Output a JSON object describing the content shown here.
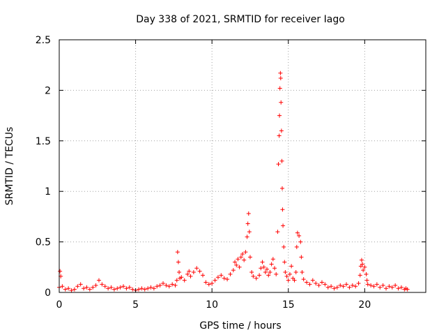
{
  "chart_data": {
    "type": "scatter",
    "title": "Day 338 of 2021, SRMTID for receiver Iago",
    "xlabel": "GPS time / hours",
    "ylabel": "SRMTID / TECUs",
    "xlim": [
      0,
      24
    ],
    "ylim": [
      0,
      2.5
    ],
    "xticks": [
      0,
      5,
      10,
      15,
      20
    ],
    "yticks": [
      0,
      0.5,
      1,
      1.5,
      2,
      2.5
    ],
    "xtick_labels": [
      "0",
      "5",
      "10",
      "15",
      "20"
    ],
    "ytick_labels": [
      "0",
      "0.5",
      "1",
      "1.5",
      "2",
      "2.5"
    ],
    "grid": true,
    "series": [
      {
        "name": "SRMTID",
        "color": "#ff0000",
        "marker": "plus",
        "points": [
          [
            0.0,
            0.05
          ],
          [
            0.05,
            0.21
          ],
          [
            0.1,
            0.16
          ],
          [
            0.2,
            0.06
          ],
          [
            0.4,
            0.03
          ],
          [
            0.6,
            0.04
          ],
          [
            0.8,
            0.02
          ],
          [
            1.0,
            0.03
          ],
          [
            1.2,
            0.06
          ],
          [
            1.4,
            0.08
          ],
          [
            1.6,
            0.04
          ],
          [
            1.8,
            0.05
          ],
          [
            2.0,
            0.03
          ],
          [
            2.2,
            0.05
          ],
          [
            2.4,
            0.07
          ],
          [
            2.6,
            0.12
          ],
          [
            2.8,
            0.08
          ],
          [
            3.0,
            0.06
          ],
          [
            3.2,
            0.04
          ],
          [
            3.4,
            0.05
          ],
          [
            3.6,
            0.03
          ],
          [
            3.8,
            0.04
          ],
          [
            4.0,
            0.05
          ],
          [
            4.2,
            0.06
          ],
          [
            4.4,
            0.04
          ],
          [
            4.6,
            0.05
          ],
          [
            4.8,
            0.03
          ],
          [
            5.0,
            0.02
          ],
          [
            5.2,
            0.03
          ],
          [
            5.4,
            0.04
          ],
          [
            5.6,
            0.03
          ],
          [
            5.8,
            0.04
          ],
          [
            6.0,
            0.05
          ],
          [
            6.2,
            0.04
          ],
          [
            6.4,
            0.06
          ],
          [
            6.6,
            0.07
          ],
          [
            6.8,
            0.09
          ],
          [
            7.0,
            0.07
          ],
          [
            7.2,
            0.06
          ],
          [
            7.4,
            0.08
          ],
          [
            7.6,
            0.07
          ],
          [
            7.7,
            0.12
          ],
          [
            7.75,
            0.4
          ],
          [
            7.8,
            0.3
          ],
          [
            7.85,
            0.2
          ],
          [
            7.9,
            0.14
          ],
          [
            8.0,
            0.15
          ],
          [
            8.2,
            0.12
          ],
          [
            8.4,
            0.18
          ],
          [
            8.5,
            0.21
          ],
          [
            8.6,
            0.16
          ],
          [
            8.8,
            0.2
          ],
          [
            9.0,
            0.24
          ],
          [
            9.2,
            0.21
          ],
          [
            9.4,
            0.17
          ],
          [
            9.6,
            0.1
          ],
          [
            9.8,
            0.08
          ],
          [
            10.0,
            0.09
          ],
          [
            10.2,
            0.12
          ],
          [
            10.4,
            0.15
          ],
          [
            10.6,
            0.17
          ],
          [
            10.8,
            0.14
          ],
          [
            11.0,
            0.13
          ],
          [
            11.2,
            0.18
          ],
          [
            11.4,
            0.22
          ],
          [
            11.5,
            0.3
          ],
          [
            11.6,
            0.27
          ],
          [
            11.7,
            0.33
          ],
          [
            11.8,
            0.25
          ],
          [
            11.9,
            0.35
          ],
          [
            12.0,
            0.38
          ],
          [
            12.1,
            0.32
          ],
          [
            12.2,
            0.4
          ],
          [
            12.3,
            0.55
          ],
          [
            12.35,
            0.68
          ],
          [
            12.4,
            0.78
          ],
          [
            12.45,
            0.6
          ],
          [
            12.5,
            0.35
          ],
          [
            12.6,
            0.2
          ],
          [
            12.7,
            0.16
          ],
          [
            12.9,
            0.14
          ],
          [
            13.1,
            0.17
          ],
          [
            13.2,
            0.24
          ],
          [
            13.3,
            0.3
          ],
          [
            13.4,
            0.25
          ],
          [
            13.5,
            0.2
          ],
          [
            13.6,
            0.23
          ],
          [
            13.7,
            0.17
          ],
          [
            13.8,
            0.2
          ],
          [
            13.9,
            0.28
          ],
          [
            14.0,
            0.33
          ],
          [
            14.1,
            0.24
          ],
          [
            14.2,
            0.18
          ],
          [
            14.3,
            0.6
          ],
          [
            14.35,
            1.27
          ],
          [
            14.4,
            1.55
          ],
          [
            14.42,
            1.75
          ],
          [
            14.45,
            2.02
          ],
          [
            14.48,
            2.17
          ],
          [
            14.5,
            2.12
          ],
          [
            14.52,
            1.88
          ],
          [
            14.55,
            1.6
          ],
          [
            14.58,
            1.3
          ],
          [
            14.6,
            1.03
          ],
          [
            14.62,
            0.82
          ],
          [
            14.65,
            0.66
          ],
          [
            14.7,
            0.45
          ],
          [
            14.75,
            0.3
          ],
          [
            14.8,
            0.2
          ],
          [
            14.9,
            0.16
          ],
          [
            15.0,
            0.12
          ],
          [
            15.1,
            0.18
          ],
          [
            15.2,
            0.26
          ],
          [
            15.3,
            0.14
          ],
          [
            15.4,
            0.12
          ],
          [
            15.5,
            0.2
          ],
          [
            15.55,
            0.45
          ],
          [
            15.6,
            0.59
          ],
          [
            15.7,
            0.56
          ],
          [
            15.8,
            0.5
          ],
          [
            15.85,
            0.35
          ],
          [
            15.9,
            0.2
          ],
          [
            16.0,
            0.13
          ],
          [
            16.2,
            0.1
          ],
          [
            16.4,
            0.08
          ],
          [
            16.6,
            0.12
          ],
          [
            16.8,
            0.09
          ],
          [
            17.0,
            0.07
          ],
          [
            17.2,
            0.1
          ],
          [
            17.4,
            0.08
          ],
          [
            17.6,
            0.05
          ],
          [
            17.8,
            0.06
          ],
          [
            18.0,
            0.04
          ],
          [
            18.2,
            0.05
          ],
          [
            18.4,
            0.07
          ],
          [
            18.6,
            0.06
          ],
          [
            18.8,
            0.08
          ],
          [
            19.0,
            0.05
          ],
          [
            19.2,
            0.07
          ],
          [
            19.4,
            0.06
          ],
          [
            19.6,
            0.09
          ],
          [
            19.7,
            0.17
          ],
          [
            19.75,
            0.26
          ],
          [
            19.8,
            0.32
          ],
          [
            19.85,
            0.28
          ],
          [
            19.9,
            0.22
          ],
          [
            20.0,
            0.25
          ],
          [
            20.1,
            0.18
          ],
          [
            20.15,
            0.12
          ],
          [
            20.2,
            0.08
          ],
          [
            20.4,
            0.07
          ],
          [
            20.6,
            0.06
          ],
          [
            20.8,
            0.08
          ],
          [
            21.0,
            0.05
          ],
          [
            21.2,
            0.07
          ],
          [
            21.4,
            0.04
          ],
          [
            21.6,
            0.06
          ],
          [
            21.8,
            0.05
          ],
          [
            22.0,
            0.07
          ],
          [
            22.2,
            0.04
          ],
          [
            22.4,
            0.05
          ],
          [
            22.6,
            0.03
          ],
          [
            22.7,
            0.04
          ],
          [
            22.8,
            0.03
          ]
        ]
      }
    ]
  }
}
